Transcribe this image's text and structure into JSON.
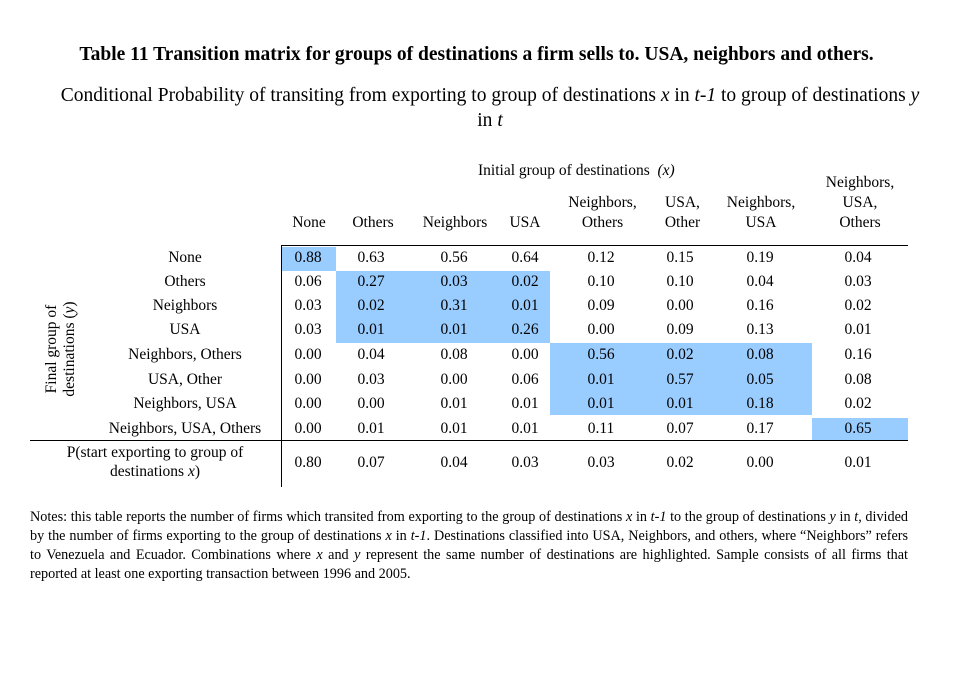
{
  "title": "Table 11 Transition matrix for groups of destinations a firm sells to. USA, neighbors and others.",
  "subtitle_parts": {
    "a": "Conditional Probability of transiting from exporting to group of destinations ",
    "x": "x",
    "in1": " in ",
    "t1": "t-1",
    "b": " to group of destinations ",
    "y": "y",
    "in2": " in ",
    "t": "t"
  },
  "col_axis_label": "Initial group of destinations",
  "col_axis_var": "(x)",
  "row_axis_label": "Final group of destinations (y)",
  "columns": [
    [
      "None"
    ],
    [
      "Others"
    ],
    [
      "Neighbors"
    ],
    [
      "USA"
    ],
    [
      "Neighbors,",
      "Others"
    ],
    [
      "USA,",
      "Other"
    ],
    [
      "Neighbors,",
      "USA"
    ],
    [
      "Neighbors,",
      "USA,",
      "Others"
    ]
  ],
  "rows": [
    {
      "label": "None",
      "values": [
        "0.88",
        "0.63",
        "0.56",
        "0.64",
        "0.12",
        "0.15",
        "0.19",
        "0.04"
      ]
    },
    {
      "label": "Others",
      "values": [
        "0.06",
        "0.27",
        "0.03",
        "0.02",
        "0.10",
        "0.10",
        "0.04",
        "0.03"
      ]
    },
    {
      "label": "Neighbors",
      "values": [
        "0.03",
        "0.02",
        "0.31",
        "0.01",
        "0.09",
        "0.00",
        "0.16",
        "0.02"
      ]
    },
    {
      "label": "USA",
      "values": [
        "0.03",
        "0.01",
        "0.01",
        "0.26",
        "0.00",
        "0.09",
        "0.13",
        "0.01"
      ]
    },
    {
      "label": "Neighbors, Others",
      "values": [
        "0.00",
        "0.04",
        "0.08",
        "0.00",
        "0.56",
        "0.02",
        "0.08",
        "0.16"
      ]
    },
    {
      "label": "USA, Other",
      "values": [
        "0.00",
        "0.03",
        "0.00",
        "0.06",
        "0.01",
        "0.57",
        "0.05",
        "0.08"
      ]
    },
    {
      "label": "Neighbors, USA",
      "values": [
        "0.00",
        "0.00",
        "0.01",
        "0.01",
        "0.01",
        "0.01",
        "0.18",
        "0.02"
      ]
    },
    {
      "label": "Neighbors, USA, Others",
      "values": [
        "0.00",
        "0.01",
        "0.01",
        "0.01",
        "0.11",
        "0.07",
        "0.17",
        "0.65"
      ]
    }
  ],
  "start_row": {
    "label_line1": "P(start exporting to group of",
    "label_line2_text": "destinations ",
    "label_line2_var": "x",
    "label_line2_end": ")",
    "values": [
      "0.80",
      "0.07",
      "0.04",
      "0.03",
      "0.03",
      "0.02",
      "0.00",
      "0.01"
    ]
  },
  "highlight_color": "#99ccff",
  "notes_parts": [
    {
      "t": "Notes: this table reports the number of firms which transited from exporting to the group of destinations "
    },
    {
      "i": "x"
    },
    {
      "t": " in "
    },
    {
      "i": "t-1"
    },
    {
      "t": " to the group of destinations "
    },
    {
      "i": "y"
    },
    {
      "t": " in "
    },
    {
      "i": "t"
    },
    {
      "t": ", divided by the number of firms exporting to the group of destinations "
    },
    {
      "i": "x"
    },
    {
      "t": " in "
    },
    {
      "i": "t-1"
    },
    {
      "t": ". Destinations classified into USA, Neighbors, and others, where “Neighbors” refers to Venezuela and Ecuador. Combinations where "
    },
    {
      "i": "x"
    },
    {
      "t": " and "
    },
    {
      "i": "y"
    },
    {
      "t": " represent the same number of destinations are highlighted. Sample consists of all firms that reported at least one exporting transaction between 1996 and 2005."
    }
  ]
}
